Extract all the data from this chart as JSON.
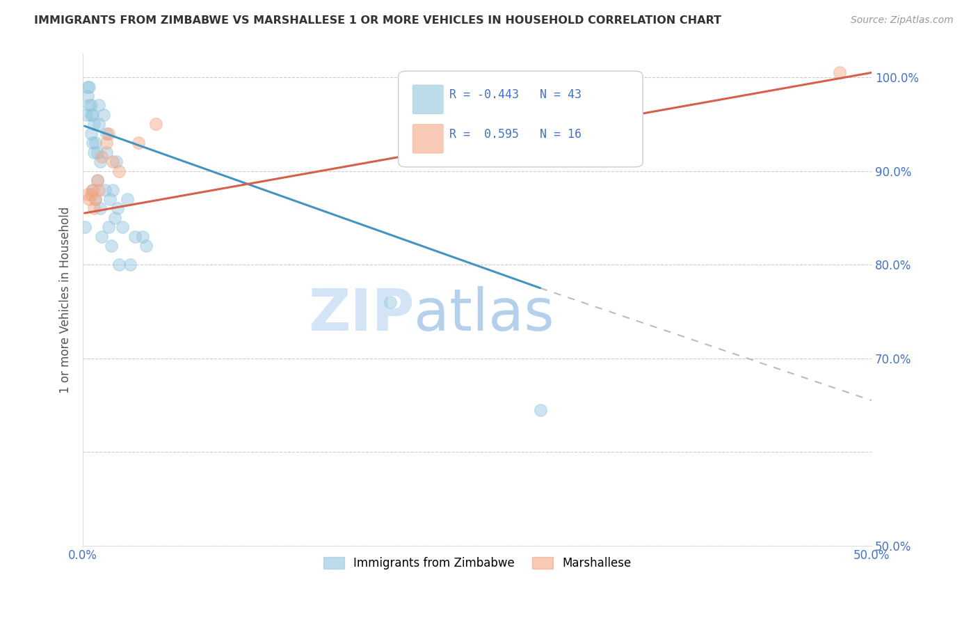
{
  "title": "IMMIGRANTS FROM ZIMBABWE VS MARSHALLESE 1 OR MORE VEHICLES IN HOUSEHOLD CORRELATION CHART",
  "source": "Source: ZipAtlas.com",
  "ylabel": "1 or more Vehicles in Household",
  "xlim": [
    0.0,
    0.5
  ],
  "ylim": [
    0.5,
    1.025
  ],
  "xticks": [
    0.0,
    0.05,
    0.1,
    0.15,
    0.2,
    0.25,
    0.3,
    0.35,
    0.4,
    0.45,
    0.5
  ],
  "xticklabels": [
    "0.0%",
    "",
    "",
    "",
    "",
    "",
    "",
    "",
    "",
    "",
    "50.0%"
  ],
  "yticks": [
    0.5,
    0.6,
    0.7,
    0.8,
    0.9,
    1.0
  ],
  "yticklabels": [
    "50.0%",
    "",
    "70.0%",
    "80.0%",
    "90.0%",
    "100.0%"
  ],
  "blue_R": -0.443,
  "blue_N": 43,
  "pink_R": 0.595,
  "pink_N": 16,
  "blue_color": "#92c5de",
  "pink_color": "#f4a582",
  "blue_line_color": "#4393c3",
  "pink_line_color": "#d6604d",
  "axis_color": "#4472C4",
  "watermark_zip": "ZIP",
  "watermark_atlas": "atlas",
  "blue_scatter_x": [
    0.001,
    0.002,
    0.003,
    0.003,
    0.004,
    0.004,
    0.005,
    0.005,
    0.005,
    0.006,
    0.006,
    0.006,
    0.007,
    0.007,
    0.008,
    0.008,
    0.009,
    0.009,
    0.01,
    0.01,
    0.011,
    0.011,
    0.012,
    0.013,
    0.014,
    0.015,
    0.015,
    0.016,
    0.017,
    0.018,
    0.019,
    0.02,
    0.021,
    0.022,
    0.023,
    0.025,
    0.028,
    0.03,
    0.033,
    0.038,
    0.04,
    0.195,
    0.29
  ],
  "blue_scatter_y": [
    0.84,
    0.96,
    0.98,
    0.99,
    0.97,
    0.99,
    0.94,
    0.96,
    0.97,
    0.88,
    0.93,
    0.96,
    0.92,
    0.95,
    0.87,
    0.93,
    0.89,
    0.92,
    0.95,
    0.97,
    0.86,
    0.91,
    0.83,
    0.96,
    0.88,
    0.92,
    0.94,
    0.84,
    0.87,
    0.82,
    0.88,
    0.85,
    0.91,
    0.86,
    0.8,
    0.84,
    0.87,
    0.8,
    0.83,
    0.83,
    0.82,
    0.76,
    0.645
  ],
  "pink_scatter_x": [
    0.003,
    0.004,
    0.005,
    0.006,
    0.007,
    0.008,
    0.009,
    0.01,
    0.012,
    0.015,
    0.016,
    0.019,
    0.023,
    0.035,
    0.046,
    0.48
  ],
  "pink_scatter_y": [
    0.875,
    0.87,
    0.875,
    0.88,
    0.86,
    0.87,
    0.89,
    0.88,
    0.915,
    0.93,
    0.94,
    0.91,
    0.9,
    0.93,
    0.95,
    1.005
  ],
  "blue_line_x": [
    0.001,
    0.29
  ],
  "blue_line_y": [
    0.948,
    0.775
  ],
  "pink_line_x": [
    0.001,
    0.5
  ],
  "pink_line_y": [
    0.855,
    1.005
  ],
  "dashed_line_x": [
    0.29,
    0.5
  ],
  "dashed_line_y": [
    0.775,
    0.655
  ],
  "legend_labels": [
    "Immigrants from Zimbabwe",
    "Marshallese"
  ]
}
